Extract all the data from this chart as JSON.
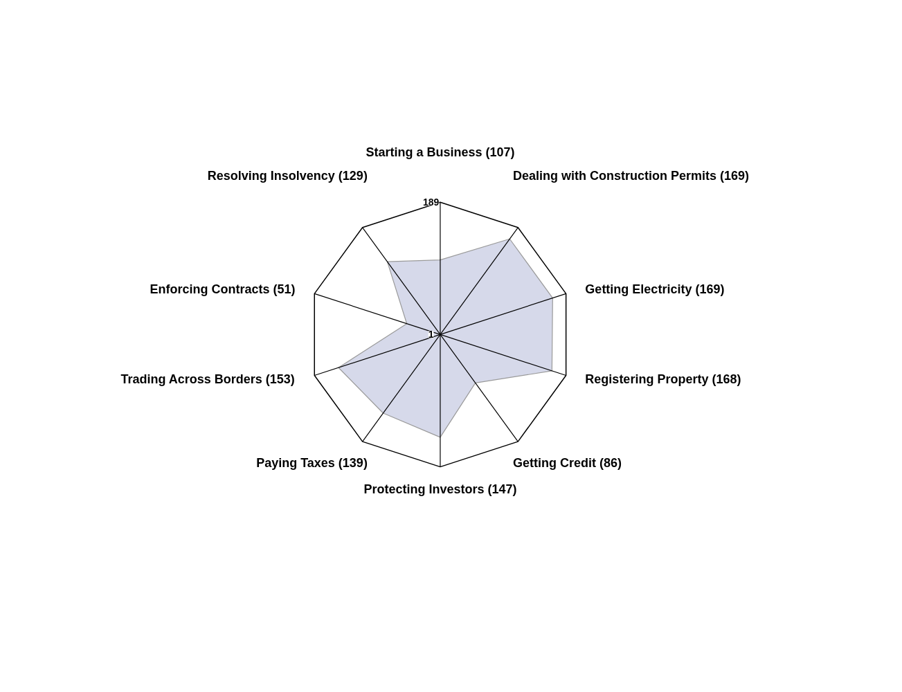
{
  "chart_data": {
    "type": "radar",
    "categories": [
      "Starting a Business (107)",
      "Dealing with Construction Permits (169)",
      "Getting Electricity (169)",
      "Registering Property (168)",
      "Getting Credit (86)",
      "Protecting Investors (147)",
      "Paying Taxes (139)",
      "Trading Across Borders (153)",
      "Enforcing Contracts (51)",
      "Resolving Insolvency (129)"
    ],
    "series": [
      {
        "color": "#d6d9ea",
        "values": [
          107,
          169,
          169,
          168,
          86,
          147,
          139,
          153,
          51,
          129
        ]
      }
    ],
    "ylim": [
      1,
      189
    ],
    "yticks": [
      1,
      189
    ]
  }
}
